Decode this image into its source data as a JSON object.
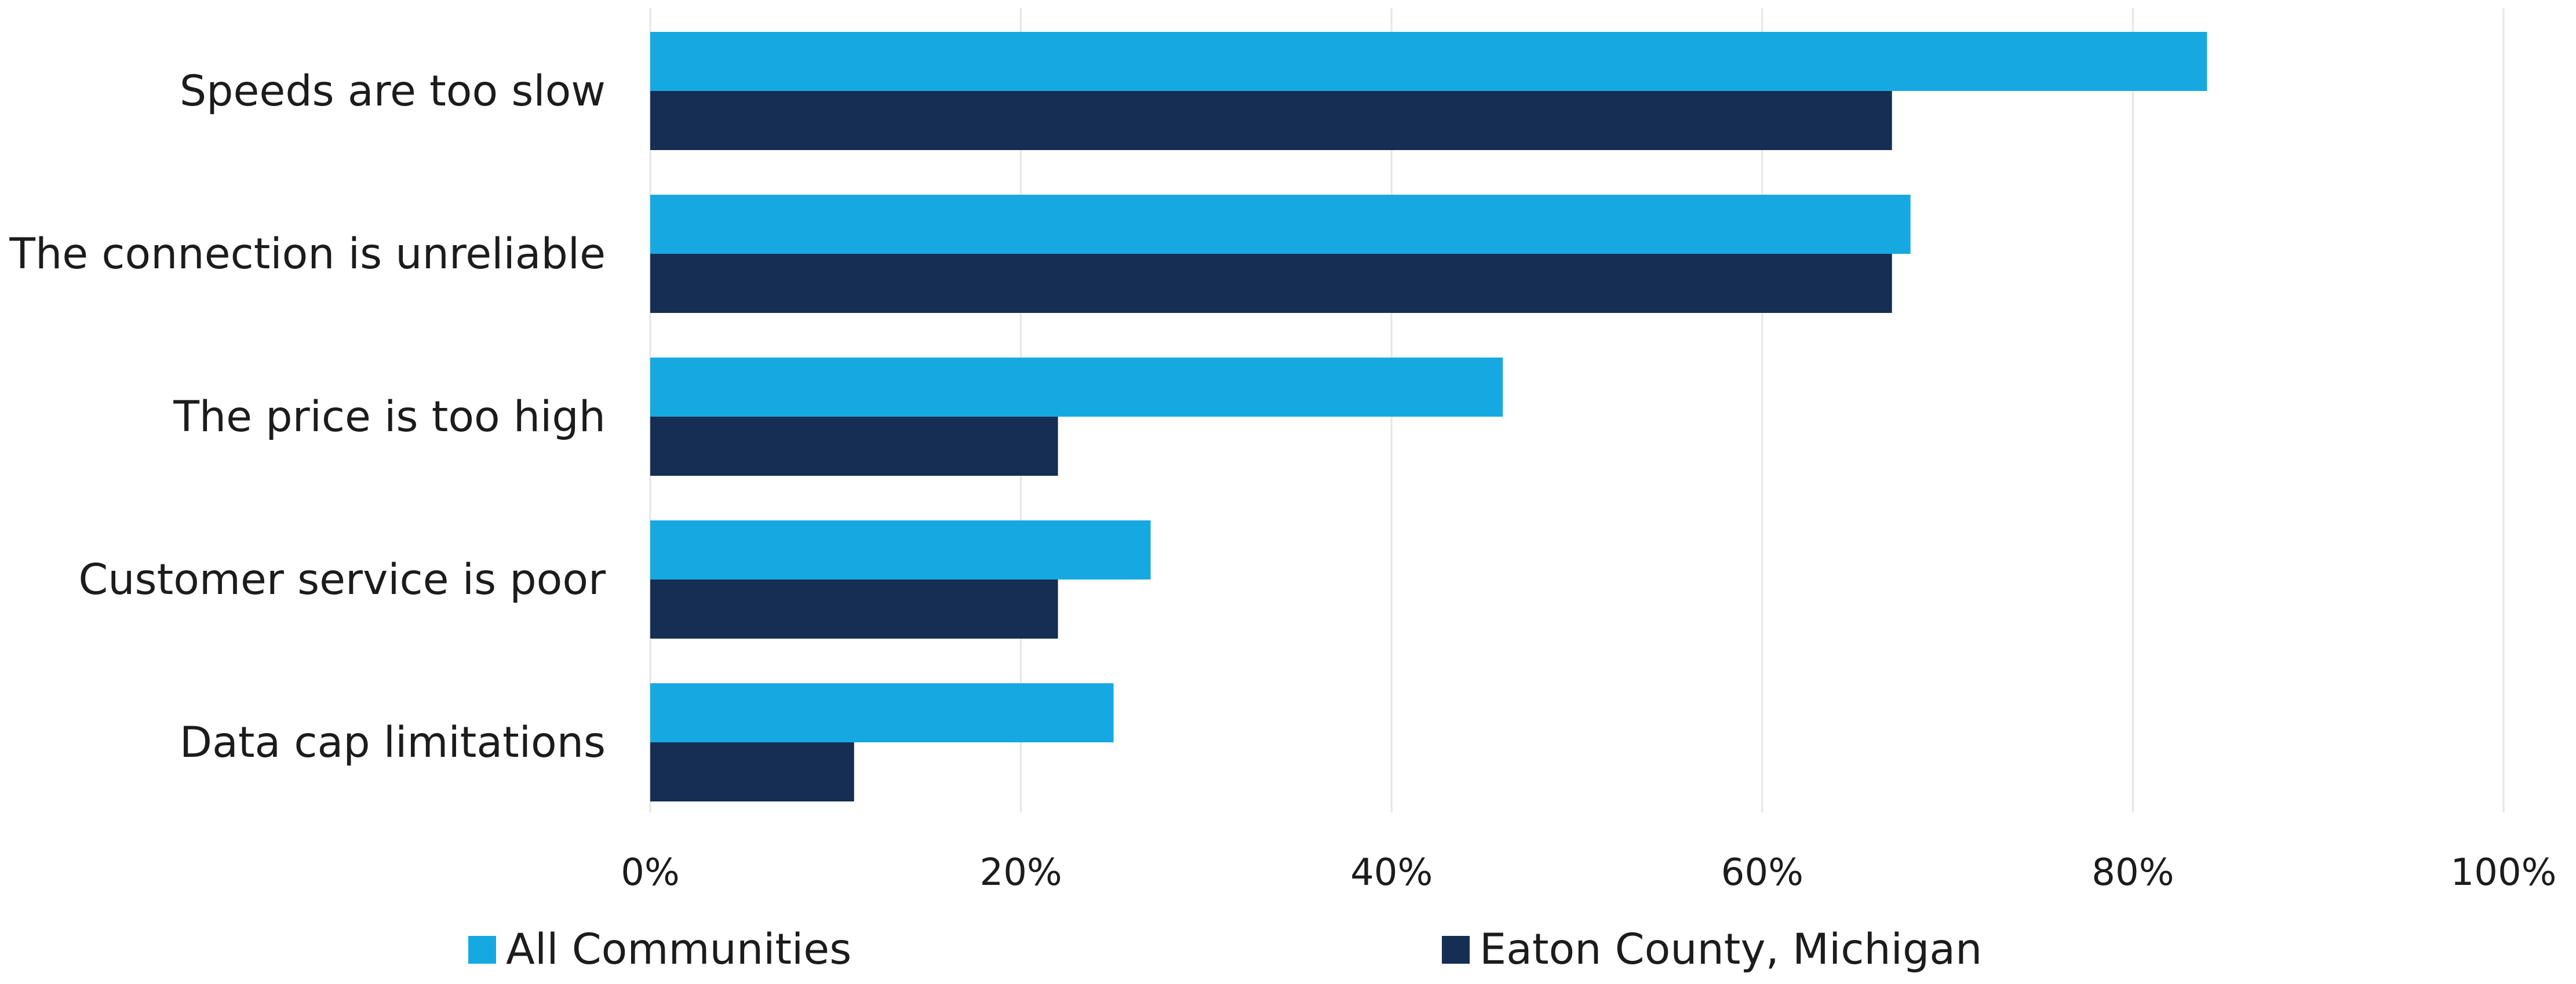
{
  "colors": {
    "all_communities": "#16a9e1",
    "eaton_county": "#162e54",
    "grid": "#e6e6e6",
    "text": "#1c1c1c"
  },
  "chart_data": {
    "type": "bar",
    "orientation": "horizontal",
    "title": "",
    "xlabel": "",
    "ylabel": "",
    "categories": [
      "Speeds are too slow",
      "The connection is unreliable",
      "The price is too high",
      "Customer service is poor",
      "Data cap limitations"
    ],
    "series": [
      {
        "name": "All Communities",
        "color": "#16a9e1",
        "values": [
          84,
          68,
          46,
          27,
          25
        ]
      },
      {
        "name": "Eaton County, Michigan",
        "color": "#162e54",
        "values": [
          67,
          67,
          22,
          22,
          11
        ]
      }
    ],
    "xlim": [
      0,
      100
    ],
    "xticks": [
      "0%",
      "20%",
      "40%",
      "60%",
      "80%",
      "100%"
    ],
    "grid": true,
    "legend_position": "bottom"
  }
}
